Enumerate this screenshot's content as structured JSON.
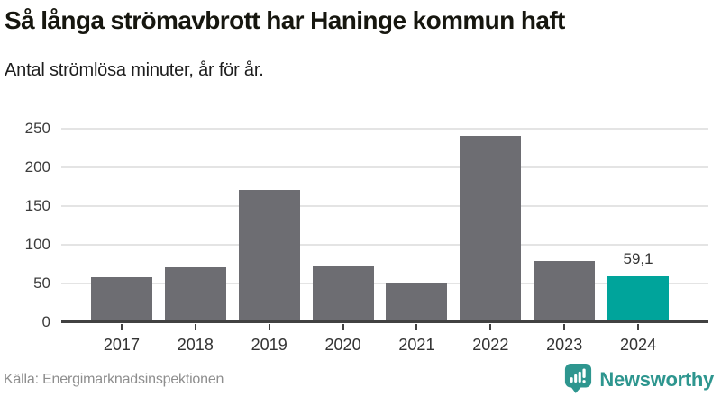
{
  "header": {
    "title": "Så långa strömavbrott har Haninge kommun haft",
    "subtitle": "Antal strömlösa minuter, år för år."
  },
  "footer": {
    "source": "Källa: Energimarknadsinspektionen",
    "brand": {
      "name": "Newsworthy",
      "logo_icon": "newsworthy-bars-icon"
    }
  },
  "colors": {
    "bar": "#6d6d72",
    "highlight": "#00a49b",
    "grid": "#e4e4e4",
    "axis": "#414141",
    "brand": "#2e968f"
  },
  "chart_data": {
    "type": "bar",
    "categories": [
      "2017",
      "2018",
      "2019",
      "2020",
      "2021",
      "2022",
      "2023",
      "2024"
    ],
    "values": [
      58,
      71,
      171,
      72,
      51,
      241,
      79,
      59.1
    ],
    "highlight_index": 7,
    "value_label": {
      "index": 7,
      "text": "59,1"
    },
    "title": "Så långa strömavbrott har Haninge kommun haft",
    "subtitle": "Antal strömlösa minuter, år för år.",
    "xlabel": "",
    "ylabel": "Antal strömlösa minuter",
    "ylim": [
      0,
      250
    ],
    "yticks": [
      0,
      50,
      100,
      150,
      200,
      250
    ],
    "grid": true,
    "legend": false
  }
}
